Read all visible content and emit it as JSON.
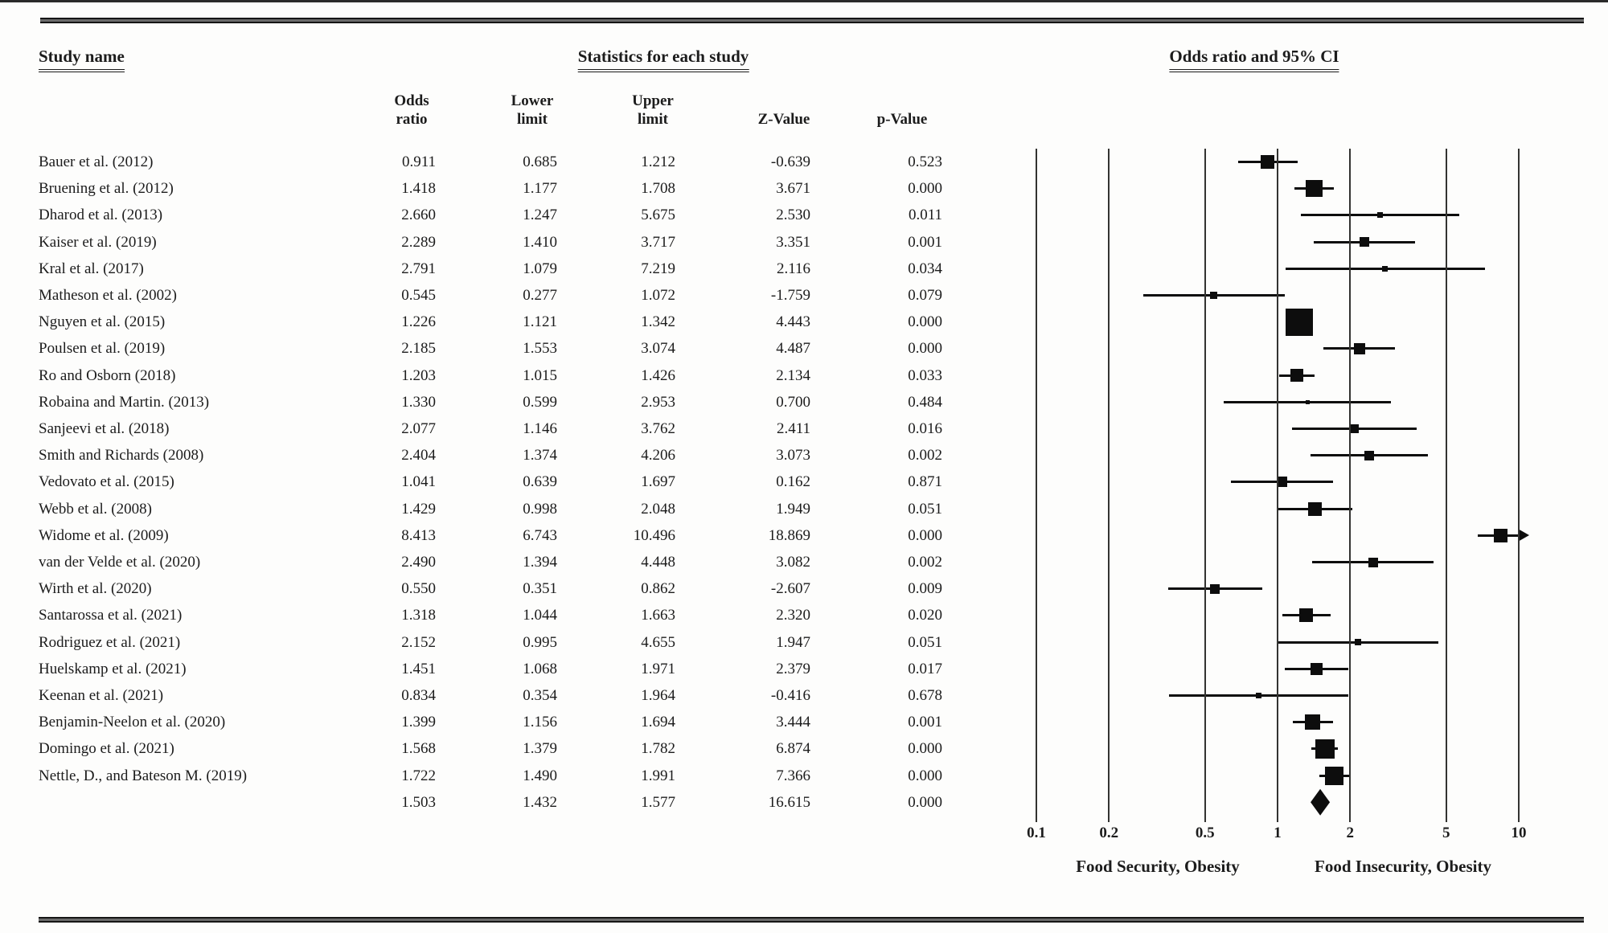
{
  "page": {
    "study_col_header": "Study name",
    "stats_group_header": "Statistics for each study",
    "plot_group_header": "Odds ratio and 95% CI",
    "stat_columns": [
      {
        "line1": "Odds",
        "line2": "ratio"
      },
      {
        "line1": "Lower",
        "line2": "limit"
      },
      {
        "line1": "Upper",
        "line2": "limit"
      },
      {
        "line1": "Z-Value",
        "line2": ""
      },
      {
        "line1": "p-Value",
        "line2": ""
      }
    ],
    "footer_left_label": "Food Security, Obesity",
    "footer_right_label": "Food Insecurity, Obesity"
  },
  "colors": {
    "ink": "#1c1c1c",
    "marker": "#0d0d0d",
    "grid_line": "#333331",
    "background": "#fdfdfc"
  },
  "chart_data": {
    "type": "forest_plot",
    "title": "Odds ratio and 95% CI",
    "x_scale": "log10",
    "x_range": [
      0.1,
      10
    ],
    "x_tick_labels": [
      "0.1",
      "0.2",
      "0.5",
      "1",
      "2",
      "5",
      "10"
    ],
    "x_ticks": [
      0.1,
      0.2,
      0.5,
      1,
      2,
      5,
      10
    ],
    "grid": true,
    "left_direction_label": "Food Security, Obesity",
    "right_direction_label": "Food Insecurity, Obesity",
    "columns": [
      "Odds ratio",
      "Lower limit",
      "Upper limit",
      "Z-Value",
      "p-Value"
    ],
    "studies": [
      {
        "name": "Bauer et al. (2012)",
        "odds_ratio": "0.911",
        "lower": "0.685",
        "upper": "1.212",
        "z": "-0.639",
        "p": "0.523",
        "marker_size": 17
      },
      {
        "name": "Bruening et al. (2012)",
        "odds_ratio": "1.418",
        "lower": "1.177",
        "upper": "1.708",
        "z": "3.671",
        "p": "0.000",
        "marker_size": 21
      },
      {
        "name": "Dharod et al. (2013)",
        "odds_ratio": "2.660",
        "lower": "1.247",
        "upper": "5.675",
        "z": "2.530",
        "p": "0.011",
        "marker_size": 7
      },
      {
        "name": "Kaiser et al. (2019)",
        "odds_ratio": "2.289",
        "lower": "1.410",
        "upper": "3.717",
        "z": "3.351",
        "p": "0.001",
        "marker_size": 12
      },
      {
        "name": "Kral et al. (2017)",
        "odds_ratio": "2.791",
        "lower": "1.079",
        "upper": "7.219",
        "z": "2.116",
        "p": "0.034",
        "marker_size": 7
      },
      {
        "name": "Matheson et al. (2002)",
        "odds_ratio": "0.545",
        "lower": "0.277",
        "upper": "1.072",
        "z": "-1.759",
        "p": "0.079",
        "marker_size": 9
      },
      {
        "name": "Nguyen et al. (2015)",
        "odds_ratio": "1.226",
        "lower": "1.121",
        "upper": "1.342",
        "z": "4.443",
        "p": "0.000",
        "marker_size": 34
      },
      {
        "name": "Poulsen et al. (2019)",
        "odds_ratio": "2.185",
        "lower": "1.553",
        "upper": "3.074",
        "z": "4.487",
        "p": "0.000",
        "marker_size": 14
      },
      {
        "name": "Ro and Osborn (2018)",
        "odds_ratio": "1.203",
        "lower": "1.015",
        "upper": "1.426",
        "z": "2.134",
        "p": "0.033",
        "marker_size": 16
      },
      {
        "name": "Robaina and Martin. (2013)",
        "odds_ratio": "1.330",
        "lower": "0.599",
        "upper": "2.953",
        "z": "0.700",
        "p": "0.484",
        "marker_size": 5
      },
      {
        "name": "Sanjeevi et al. (2018)",
        "odds_ratio": "2.077",
        "lower": "1.146",
        "upper": "3.762",
        "z": "2.411",
        "p": "0.016",
        "marker_size": 11
      },
      {
        "name": "Smith and Richards (2008)",
        "odds_ratio": "2.404",
        "lower": "1.374",
        "upper": "4.206",
        "z": "3.073",
        "p": "0.002",
        "marker_size": 12
      },
      {
        "name": "Vedovato et al. (2015)",
        "odds_ratio": "1.041",
        "lower": "0.639",
        "upper": "1.697",
        "z": "0.162",
        "p": "0.871",
        "marker_size": 13
      },
      {
        "name": "Webb et al. (2008)",
        "odds_ratio": "1.429",
        "lower": "0.998",
        "upper": "2.048",
        "z": "1.949",
        "p": "0.051",
        "marker_size": 17
      },
      {
        "name": "Widome et al. (2009)",
        "odds_ratio": "8.413",
        "lower": "6.743",
        "upper": "10.496",
        "z": "18.869",
        "p": "0.000",
        "marker_size": 17,
        "arrow_high": true
      },
      {
        "name": "van der Velde et al. (2020)",
        "odds_ratio": "2.490",
        "lower": "1.394",
        "upper": "4.448",
        "z": "3.082",
        "p": "0.002",
        "marker_size": 12
      },
      {
        "name": "Wirth et al. (2020)",
        "odds_ratio": "0.550",
        "lower": "0.351",
        "upper": "0.862",
        "z": "-2.607",
        "p": "0.009",
        "marker_size": 12
      },
      {
        "name": "Santarossa et al. (2021)",
        "odds_ratio": "1.318",
        "lower": "1.044",
        "upper": "1.663",
        "z": "2.320",
        "p": "0.020",
        "marker_size": 17
      },
      {
        "name": "Rodriguez et al. (2021)",
        "odds_ratio": "2.152",
        "lower": "0.995",
        "upper": "4.655",
        "z": "1.947",
        "p": "0.051",
        "marker_size": 8
      },
      {
        "name": "Huelskamp et al. (2021)",
        "odds_ratio": "1.451",
        "lower": "1.068",
        "upper": "1.971",
        "z": "2.379",
        "p": "0.017",
        "marker_size": 15
      },
      {
        "name": "Keenan et al. (2021)",
        "odds_ratio": "0.834",
        "lower": "0.354",
        "upper": "1.964",
        "z": "-0.416",
        "p": "0.678",
        "marker_size": 7
      },
      {
        "name": "Benjamin-Neelon et al. (2020)",
        "odds_ratio": "1.399",
        "lower": "1.156",
        "upper": "1.694",
        "z": "3.444",
        "p": "0.001",
        "marker_size": 19
      },
      {
        "name": "Domingo et al. (2021)",
        "odds_ratio": "1.568",
        "lower": "1.379",
        "upper": "1.782",
        "z": "6.874",
        "p": "0.000",
        "marker_size": 24
      },
      {
        "name": "Nettle, D., and Bateson M. (2019)",
        "odds_ratio": "1.722",
        "lower": "1.490",
        "upper": "1.991",
        "z": "7.366",
        "p": "0.000",
        "marker_size": 23
      }
    ],
    "summary": {
      "name": "",
      "odds_ratio": "1.503",
      "lower": "1.432",
      "upper": "1.577",
      "z": "16.615",
      "p": "0.000"
    }
  }
}
